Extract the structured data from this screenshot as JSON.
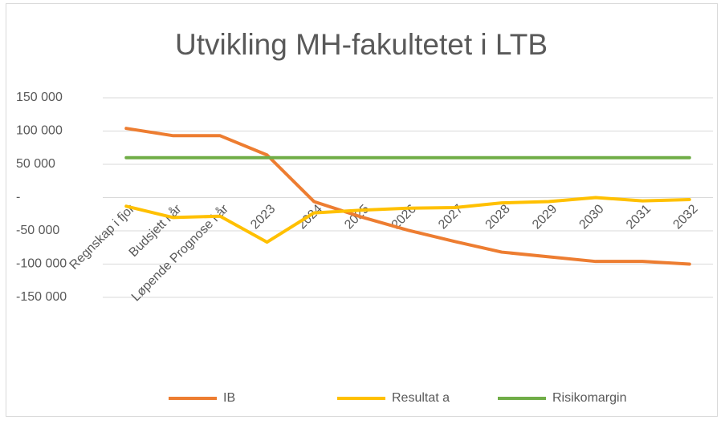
{
  "chart_data": {
    "type": "line",
    "title": "Utvikling MH-fakultetet  i LTB",
    "categories": [
      "Regnskap i fjor",
      "Budsjett i år",
      "Løpende Prognose i år",
      "2023",
      "2024",
      "2025",
      "2026",
      "2027",
      "2028",
      "2029",
      "2030",
      "2031",
      "2032"
    ],
    "series": [
      {
        "name": "IB",
        "color": "#ed7d31",
        "values": [
          104000,
          93000,
          93000,
          64000,
          -6000,
          -29000,
          -49000,
          -66000,
          -82000,
          -89000,
          -96000,
          -96000,
          -100000
        ]
      },
      {
        "name": "Resultat a",
        "color": "#ffc000",
        "values": [
          -13000,
          -30000,
          -28000,
          -67000,
          -23000,
          -19000,
          -16000,
          -15000,
          -8000,
          -6000,
          0,
          -5000,
          -3000
        ]
      },
      {
        "name": "Risikomargin",
        "color": "#70ad47",
        "values": [
          60000,
          60000,
          60000,
          60000,
          60000,
          60000,
          60000,
          60000,
          60000,
          60000,
          60000,
          60000,
          60000
        ]
      }
    ],
    "ylim": [
      -150000,
      150000
    ],
    "yticks": [
      {
        "value": -150000,
        "label": "-150 000"
      },
      {
        "value": -100000,
        "label": "-100 000"
      },
      {
        "value": -50000,
        "label": "-50 000"
      },
      {
        "value": 0,
        "label": "-"
      },
      {
        "value": 50000,
        "label": "50 000"
      },
      {
        "value": 100000,
        "label": "100 000"
      },
      {
        "value": 150000,
        "label": "150 000"
      }
    ],
    "grid": true,
    "legend": "bottom"
  }
}
